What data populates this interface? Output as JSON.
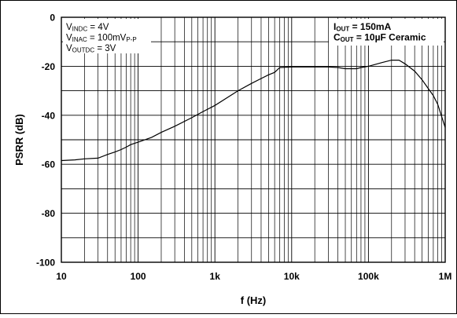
{
  "chart_data": {
    "type": "line",
    "xlabel": "f (Hz)",
    "ylabel": "PSRR (dB)",
    "x_scale": "log",
    "xlim": [
      10,
      1000000
    ],
    "ylim": [
      -100,
      0
    ],
    "grid": true,
    "x_ticks": [
      {
        "value": 10,
        "label": "10"
      },
      {
        "value": 100,
        "label": "100"
      },
      {
        "value": 1000,
        "label": "1k"
      },
      {
        "value": 10000,
        "label": "10k"
      },
      {
        "value": 100000,
        "label": "100k"
      },
      {
        "value": 1000000,
        "label": "1M"
      }
    ],
    "y_ticks": [
      {
        "value": 0,
        "label": "0"
      },
      {
        "value": -20,
        "label": "-20"
      },
      {
        "value": -40,
        "label": "-40"
      },
      {
        "value": -60,
        "label": "-60"
      },
      {
        "value": -80,
        "label": "-80"
      },
      {
        "value": -100,
        "label": "-100"
      }
    ],
    "series": [
      {
        "x": [
          10,
          15,
          20,
          30,
          40,
          50,
          60,
          70,
          80,
          100,
          150,
          200,
          300,
          500,
          700,
          1000,
          1500,
          2000,
          3000,
          4000,
          5000,
          6000,
          7000,
          10000,
          15000,
          20000,
          30000,
          40000,
          50000,
          60000,
          70000,
          80000,
          100000,
          150000,
          200000,
          250000,
          300000,
          400000,
          500000,
          600000,
          700000,
          800000,
          1000000
        ],
        "y": [
          -58.5,
          -58.2,
          -57.8,
          -57.5,
          -56,
          -55,
          -54,
          -53,
          -52,
          -51,
          -49,
          -47,
          -44.5,
          -41,
          -38.5,
          -36,
          -32.5,
          -30,
          -27,
          -25,
          -23.5,
          -22.5,
          -20.5,
          -20.3,
          -20.3,
          -20.3,
          -20.3,
          -20.5,
          -21,
          -21,
          -21,
          -20.5,
          -20,
          -18.5,
          -17.5,
          -17.5,
          -19,
          -22,
          -25.5,
          -29,
          -32,
          -35.5,
          -45
        ]
      }
    ],
    "annotations": {
      "left": [
        {
          "main": "V",
          "sub": "INDC",
          "rest": " = 4V",
          "rest_sub": ""
        },
        {
          "main": "V",
          "sub": "INAC",
          "rest": " = 100mV",
          "rest_sub": "P-P"
        },
        {
          "main": "V",
          "sub": "OUTDC",
          "rest": " = 3V",
          "rest_sub": ""
        }
      ],
      "right": [
        {
          "main": "I",
          "sub": "OUT",
          "rest": " = 150mA"
        },
        {
          "main": "C",
          "sub": "OUT",
          "rest": " = 10µF Ceramic"
        }
      ]
    }
  }
}
